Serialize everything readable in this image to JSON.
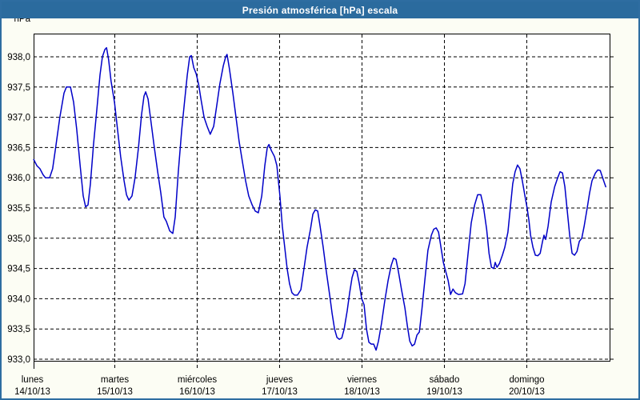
{
  "window": {
    "title": "Presión atmosférica [hPa] escala"
  },
  "colors": {
    "titlebar": "#2b6b9e",
    "frame": "#2e6da1",
    "background": "#fcfdf4",
    "plot_background": "#ffffff",
    "grid": "#000000",
    "line": "#0000c8",
    "text": "#000000"
  },
  "chart_data": {
    "type": "line",
    "title": "Presión atmosférica [hPa] escala",
    "ylabel": "hPa",
    "ylim": [
      933.0,
      938.0
    ],
    "ytick_step": 0.5,
    "ytick_labels": [
      "938,0",
      "937,5",
      "937,0",
      "936,5",
      "936,0",
      "935,5",
      "935,0",
      "934,5",
      "934,0",
      "933,5",
      "933,0"
    ],
    "ytick_values": [
      938.0,
      937.5,
      937.0,
      936.5,
      936.0,
      935.5,
      935.0,
      934.5,
      934.0,
      933.5,
      933.0
    ],
    "grid": "dashed",
    "legend_position": "none",
    "x_days": [
      {
        "name": "lunes",
        "date": "14/10/13"
      },
      {
        "name": "martes",
        "date": "15/10/13"
      },
      {
        "name": "miércoles",
        "date": "16/10/13"
      },
      {
        "name": "jueves",
        "date": "17/10/13"
      },
      {
        "name": "viernes",
        "date": "18/10/13"
      },
      {
        "name": "sábado",
        "date": "19/10/13"
      },
      {
        "name": "domingo",
        "date": "20/10/13"
      }
    ],
    "series": [
      {
        "name": "Presión atmosférica",
        "unit": "hPa",
        "x_unit": "hours_since_2013-10-14_00:00",
        "points": [
          [
            0.4,
            936.3
          ],
          [
            1.3,
            936.2
          ],
          [
            2.2,
            936.15
          ],
          [
            3.1,
            936.05
          ],
          [
            3.8,
            936.0
          ],
          [
            5.0,
            936.0
          ],
          [
            5.9,
            936.15
          ],
          [
            6.9,
            936.55
          ],
          [
            8.0,
            937.0
          ],
          [
            9.2,
            937.4
          ],
          [
            9.9,
            937.5
          ],
          [
            11.1,
            937.5
          ],
          [
            12.0,
            937.25
          ],
          [
            12.9,
            936.8
          ],
          [
            13.9,
            936.2
          ],
          [
            14.8,
            935.7
          ],
          [
            15.5,
            935.52
          ],
          [
            16.2,
            935.55
          ],
          [
            16.9,
            935.9
          ],
          [
            17.8,
            936.55
          ],
          [
            18.8,
            937.15
          ],
          [
            19.7,
            937.7
          ],
          [
            20.4,
            938.0
          ],
          [
            21.1,
            938.12
          ],
          [
            21.6,
            938.15
          ],
          [
            22.2,
            937.95
          ],
          [
            22.9,
            937.6
          ],
          [
            23.9,
            937.25
          ],
          [
            24.8,
            936.8
          ],
          [
            25.7,
            936.35
          ],
          [
            26.7,
            935.95
          ],
          [
            27.4,
            935.72
          ],
          [
            28.1,
            935.63
          ],
          [
            29.0,
            935.7
          ],
          [
            29.9,
            936.0
          ],
          [
            30.9,
            936.5
          ],
          [
            31.8,
            937.05
          ],
          [
            32.5,
            937.35
          ],
          [
            33.0,
            937.42
          ],
          [
            33.7,
            937.3
          ],
          [
            34.6,
            936.9
          ],
          [
            35.5,
            936.5
          ],
          [
            36.5,
            936.1
          ],
          [
            37.4,
            935.75
          ],
          [
            38.3,
            935.35
          ],
          [
            39.0,
            935.28
          ],
          [
            40.0,
            935.12
          ],
          [
            40.9,
            935.08
          ],
          [
            41.6,
            935.35
          ],
          [
            42.5,
            936.1
          ],
          [
            43.5,
            936.8
          ],
          [
            44.4,
            937.3
          ],
          [
            45.1,
            937.7
          ],
          [
            45.8,
            938.0
          ],
          [
            46.3,
            938.02
          ],
          [
            47.0,
            937.82
          ],
          [
            47.7,
            937.72
          ],
          [
            48.4,
            937.55
          ],
          [
            49.1,
            937.3
          ],
          [
            50.0,
            937.0
          ],
          [
            50.9,
            936.85
          ],
          [
            51.8,
            936.72
          ],
          [
            52.8,
            936.85
          ],
          [
            53.7,
            937.2
          ],
          [
            54.6,
            937.55
          ],
          [
            55.6,
            937.85
          ],
          [
            56.3,
            938.0
          ],
          [
            56.7,
            938.04
          ],
          [
            57.4,
            937.8
          ],
          [
            58.4,
            937.4
          ],
          [
            59.3,
            937.0
          ],
          [
            60.2,
            936.6
          ],
          [
            61.2,
            936.25
          ],
          [
            62.1,
            935.95
          ],
          [
            63.0,
            935.7
          ],
          [
            64.0,
            935.55
          ],
          [
            64.9,
            935.45
          ],
          [
            65.8,
            935.42
          ],
          [
            66.8,
            935.7
          ],
          [
            67.7,
            936.2
          ],
          [
            68.4,
            936.5
          ],
          [
            68.9,
            936.55
          ],
          [
            69.6,
            936.45
          ],
          [
            70.5,
            936.35
          ],
          [
            71.2,
            936.2
          ],
          [
            72.1,
            935.7
          ],
          [
            72.8,
            935.2
          ],
          [
            73.5,
            934.85
          ],
          [
            74.2,
            934.5
          ],
          [
            74.9,
            934.25
          ],
          [
            75.6,
            934.1
          ],
          [
            76.3,
            934.06
          ],
          [
            77.2,
            934.06
          ],
          [
            78.2,
            934.15
          ],
          [
            79.1,
            934.5
          ],
          [
            80.0,
            934.85
          ],
          [
            81.0,
            935.15
          ],
          [
            81.7,
            935.4
          ],
          [
            82.4,
            935.47
          ],
          [
            83.1,
            935.45
          ],
          [
            83.8,
            935.2
          ],
          [
            84.7,
            934.85
          ],
          [
            85.6,
            934.45
          ],
          [
            86.6,
            934.05
          ],
          [
            87.3,
            933.75
          ],
          [
            88.0,
            933.5
          ],
          [
            88.7,
            933.36
          ],
          [
            89.4,
            933.33
          ],
          [
            90.1,
            933.35
          ],
          [
            90.8,
            933.5
          ],
          [
            91.7,
            933.8
          ],
          [
            92.4,
            934.1
          ],
          [
            93.1,
            934.35
          ],
          [
            93.8,
            934.48
          ],
          [
            94.5,
            934.45
          ],
          [
            95.2,
            934.25
          ],
          [
            95.9,
            934.0
          ],
          [
            96.6,
            933.9
          ],
          [
            97.3,
            933.5
          ],
          [
            98.0,
            933.28
          ],
          [
            98.7,
            933.25
          ],
          [
            99.4,
            933.25
          ],
          [
            100.1,
            933.15
          ],
          [
            100.8,
            933.3
          ],
          [
            101.7,
            933.6
          ],
          [
            102.6,
            933.95
          ],
          [
            103.6,
            934.3
          ],
          [
            104.5,
            934.55
          ],
          [
            105.2,
            934.67
          ],
          [
            105.9,
            934.65
          ],
          [
            106.6,
            934.45
          ],
          [
            107.5,
            934.15
          ],
          [
            108.5,
            933.85
          ],
          [
            109.2,
            933.55
          ],
          [
            109.9,
            933.3
          ],
          [
            110.6,
            933.22
          ],
          [
            111.3,
            933.25
          ],
          [
            112.0,
            933.4
          ],
          [
            112.7,
            933.45
          ],
          [
            113.4,
            933.8
          ],
          [
            114.3,
            934.3
          ],
          [
            115.2,
            934.8
          ],
          [
            116.2,
            935.05
          ],
          [
            116.9,
            935.15
          ],
          [
            117.6,
            935.17
          ],
          [
            118.3,
            935.1
          ],
          [
            119.0,
            934.85
          ],
          [
            119.7,
            934.6
          ],
          [
            120.4,
            934.45
          ],
          [
            121.1,
            934.3
          ],
          [
            121.8,
            934.07
          ],
          [
            122.5,
            934.16
          ],
          [
            123.2,
            934.1
          ],
          [
            124.1,
            934.07
          ],
          [
            125.3,
            934.08
          ],
          [
            126.0,
            934.25
          ],
          [
            126.9,
            934.75
          ],
          [
            127.8,
            935.25
          ],
          [
            128.8,
            935.55
          ],
          [
            129.7,
            935.72
          ],
          [
            130.6,
            935.72
          ],
          [
            131.3,
            935.55
          ],
          [
            132.3,
            935.15
          ],
          [
            133.0,
            934.75
          ],
          [
            133.7,
            934.52
          ],
          [
            134.4,
            934.5
          ],
          [
            134.8,
            934.6
          ],
          [
            135.3,
            934.52
          ],
          [
            136.0,
            934.58
          ],
          [
            136.9,
            934.72
          ],
          [
            137.6,
            934.85
          ],
          [
            138.5,
            935.1
          ],
          [
            139.2,
            935.5
          ],
          [
            139.9,
            935.9
          ],
          [
            140.6,
            936.1
          ],
          [
            141.3,
            936.21
          ],
          [
            142.0,
            936.15
          ],
          [
            142.7,
            935.95
          ],
          [
            143.4,
            935.72
          ],
          [
            144.1,
            935.5
          ],
          [
            144.6,
            935.3
          ],
          [
            145.1,
            935.05
          ],
          [
            145.8,
            934.85
          ],
          [
            146.5,
            934.72
          ],
          [
            147.2,
            934.71
          ],
          [
            147.9,
            934.75
          ],
          [
            148.6,
            934.95
          ],
          [
            149.0,
            935.05
          ],
          [
            149.5,
            934.98
          ],
          [
            150.2,
            935.2
          ],
          [
            151.1,
            935.6
          ],
          [
            152.1,
            935.85
          ],
          [
            153.0,
            936.0
          ],
          [
            153.7,
            936.1
          ],
          [
            154.4,
            936.08
          ],
          [
            155.1,
            935.85
          ],
          [
            155.8,
            935.45
          ],
          [
            156.5,
            935.05
          ],
          [
            157.2,
            934.75
          ],
          [
            157.9,
            934.72
          ],
          [
            158.6,
            934.78
          ],
          [
            159.3,
            934.95
          ],
          [
            160.0,
            935.0
          ],
          [
            160.7,
            935.2
          ],
          [
            161.6,
            935.5
          ],
          [
            162.3,
            935.75
          ],
          [
            163.0,
            935.95
          ],
          [
            164.0,
            936.08
          ],
          [
            164.7,
            936.13
          ],
          [
            165.4,
            936.12
          ],
          [
            166.1,
            936.0
          ],
          [
            166.8,
            935.88
          ],
          [
            167.0,
            935.85
          ]
        ]
      }
    ]
  }
}
